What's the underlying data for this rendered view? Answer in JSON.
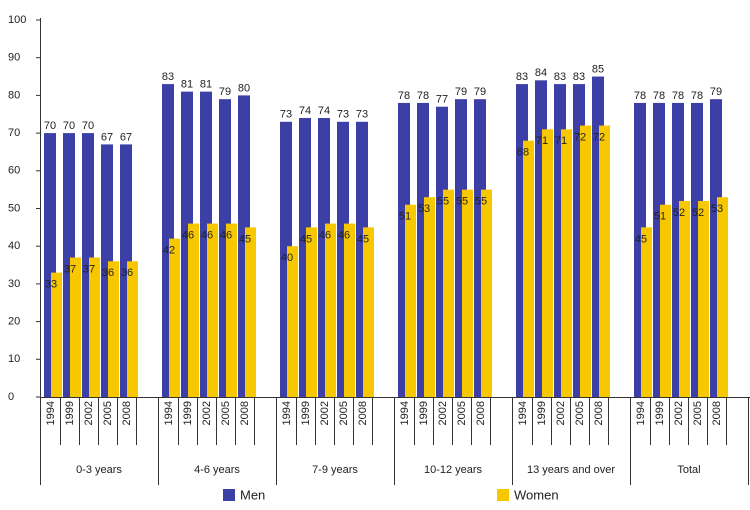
{
  "chart_data": {
    "type": "bar",
    "groups": [
      "0-3 years",
      "4-6 years",
      "7-9 years",
      "10-12 years",
      "13 years and over",
      "Total"
    ],
    "years": [
      "1994",
      "1999",
      "2002",
      "2005",
      "2008"
    ],
    "series": [
      {
        "name": "Men",
        "color": "#3b3fa6",
        "values": [
          70,
          70,
          70,
          67,
          67,
          83,
          81,
          81,
          79,
          80,
          73,
          74,
          74,
          73,
          73,
          78,
          78,
          77,
          79,
          79,
          83,
          84,
          83,
          83,
          85,
          78,
          78,
          78,
          78,
          79
        ]
      },
      {
        "name": "Women",
        "color": "#f7c800",
        "values": [
          33,
          37,
          37,
          36,
          36,
          42,
          46,
          46,
          46,
          45,
          40,
          45,
          46,
          46,
          45,
          51,
          53,
          55,
          55,
          55,
          68,
          71,
          71,
          72,
          72,
          45,
          51,
          52,
          52,
          53
        ]
      }
    ],
    "ylim": [
      0,
      100
    ],
    "yticks": [
      0,
      10,
      20,
      30,
      40,
      50,
      60,
      70,
      80,
      90,
      100
    ]
  }
}
